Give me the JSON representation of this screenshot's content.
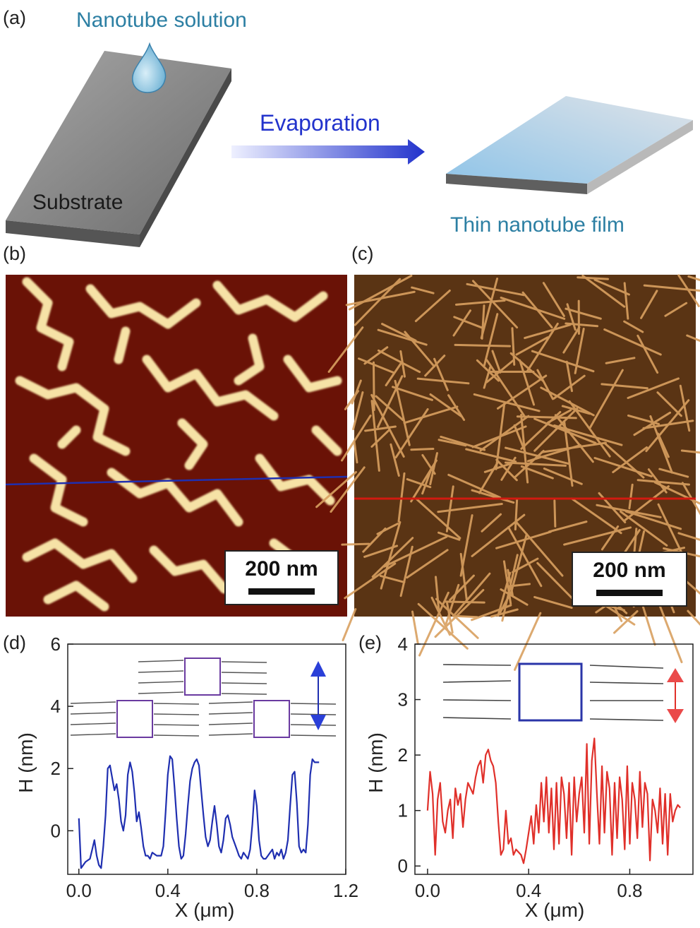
{
  "panel_a": {
    "label": "(a)",
    "droplet_label": "Nanotube solution",
    "substrate_label": "Substrate",
    "arrow_label": "Evaporation",
    "film_label": "Thin nanotube film",
    "colors": {
      "caption": "#2c7fa3",
      "arrow": "#2233cc",
      "substrate": "#8c8c8c",
      "film": "#8fc4e8"
    }
  },
  "panel_b": {
    "label": "(b)",
    "scale_bar": "200 nm",
    "line_color": "#1f2fb0",
    "colors": {
      "background": "#6a1206",
      "features": "#f6e2a6"
    }
  },
  "panel_c": {
    "label": "(c)",
    "scale_bar": "200 nm",
    "line_color": "#d21a10",
    "colors": {
      "background": "#5a3414",
      "features": "#d9a060"
    }
  },
  "panel_d": {
    "label": "(d)",
    "xlabel": "X (μm)",
    "ylabel": "H (nm)",
    "x_ticks": [
      "0.0",
      "0.4",
      "0.8",
      "1.2"
    ],
    "y_ticks": [
      "0",
      "2",
      "4",
      "6"
    ],
    "arrow_icon": "double-vertical-arrow-blue",
    "line_color": "#1f2fb0"
  },
  "panel_e": {
    "label": "(e)",
    "xlabel": "X (μm)",
    "ylabel": "H (nm)",
    "x_ticks": [
      "0.0",
      "0.4",
      "0.8"
    ],
    "y_ticks": [
      "0",
      "1",
      "2",
      "3",
      "4"
    ],
    "arrow_icon": "double-vertical-arrow-red",
    "line_color": "#e0302a"
  },
  "chart_data": [
    {
      "type": "line",
      "panel": "d",
      "xlabel": "X (μm)",
      "ylabel": "H (nm)",
      "xlim": [
        -0.05,
        1.2
      ],
      "ylim": [
        -1.4,
        6
      ],
      "grid": false,
      "series": [
        {
          "color": "#1f2fb0",
          "x": [
            0.0,
            0.01,
            0.03,
            0.05,
            0.06,
            0.07,
            0.08,
            0.09,
            0.1,
            0.11,
            0.12,
            0.13,
            0.14,
            0.15,
            0.16,
            0.17,
            0.18,
            0.19,
            0.2,
            0.21,
            0.22,
            0.23,
            0.24,
            0.25,
            0.26,
            0.27,
            0.28,
            0.29,
            0.3,
            0.31,
            0.32,
            0.33,
            0.35,
            0.37,
            0.38,
            0.39,
            0.4,
            0.41,
            0.42,
            0.43,
            0.44,
            0.45,
            0.46,
            0.47,
            0.48,
            0.49,
            0.5,
            0.51,
            0.52,
            0.53,
            0.54,
            0.55,
            0.56,
            0.57,
            0.58,
            0.59,
            0.6,
            0.61,
            0.62,
            0.63,
            0.64,
            0.65,
            0.66,
            0.67,
            0.68,
            0.69,
            0.7,
            0.71,
            0.72,
            0.73,
            0.74,
            0.75,
            0.76,
            0.77,
            0.78,
            0.79,
            0.8,
            0.81,
            0.82,
            0.83,
            0.84,
            0.85,
            0.86,
            0.87,
            0.88,
            0.89,
            0.9,
            0.91,
            0.92,
            0.93,
            0.94,
            0.95,
            0.96,
            0.97,
            0.98,
            0.99,
            1.0,
            1.01,
            1.02,
            1.03,
            1.04,
            1.05,
            1.06,
            1.07,
            1.08
          ],
          "y": [
            0.4,
            -1.2,
            -1.0,
            -0.9,
            -0.6,
            -0.3,
            -0.8,
            -1.1,
            -1.2,
            -0.5,
            0.5,
            2.0,
            2.1,
            1.7,
            1.3,
            1.5,
            1.0,
            0.3,
            0.0,
            0.5,
            1.8,
            2.2,
            1.9,
            1.2,
            0.3,
            0.6,
            0.1,
            -0.5,
            -0.8,
            -0.8,
            -0.9,
            -0.7,
            -0.8,
            -0.8,
            -0.5,
            0.6,
            1.8,
            2.4,
            2.3,
            1.4,
            0.4,
            -0.5,
            -0.9,
            -0.8,
            -0.1,
            0.8,
            1.6,
            2.0,
            2.2,
            2.3,
            2.1,
            1.3,
            0.5,
            -0.2,
            -0.5,
            -0.3,
            0.3,
            0.8,
            0.2,
            -0.5,
            -0.7,
            -0.3,
            0.4,
            0.5,
            0.2,
            -0.2,
            -0.4,
            -0.6,
            -0.8,
            -0.9,
            -0.7,
            -0.8,
            -0.9,
            -0.6,
            0.2,
            1.3,
            0.8,
            -0.3,
            -0.8,
            -0.9,
            -0.9,
            -0.8,
            -0.7,
            -0.6,
            -0.9,
            -0.7,
            -0.8,
            -0.6,
            -0.9,
            -0.7,
            -0.3,
            0.8,
            1.8,
            1.9,
            0.9,
            -0.5,
            -0.7,
            -0.6,
            -0.7,
            0.2,
            1.8,
            2.3,
            2.2,
            2.2,
            2.2
          ]
        }
      ]
    },
    {
      "type": "line",
      "panel": "e",
      "xlabel": "X (μm)",
      "ylabel": "H (nm)",
      "xlim": [
        -0.05,
        1.05
      ],
      "ylim": [
        -0.15,
        4
      ],
      "grid": false,
      "series": [
        {
          "color": "#e0302a",
          "x": [
            0.0,
            0.01,
            0.02,
            0.03,
            0.04,
            0.05,
            0.06,
            0.07,
            0.08,
            0.09,
            0.1,
            0.11,
            0.12,
            0.13,
            0.14,
            0.15,
            0.16,
            0.17,
            0.18,
            0.19,
            0.2,
            0.21,
            0.22,
            0.23,
            0.24,
            0.25,
            0.26,
            0.27,
            0.28,
            0.29,
            0.3,
            0.31,
            0.32,
            0.33,
            0.34,
            0.35,
            0.36,
            0.37,
            0.38,
            0.39,
            0.4,
            0.41,
            0.42,
            0.43,
            0.44,
            0.45,
            0.46,
            0.47,
            0.48,
            0.49,
            0.5,
            0.51,
            0.52,
            0.53,
            0.54,
            0.55,
            0.56,
            0.57,
            0.58,
            0.59,
            0.6,
            0.61,
            0.62,
            0.63,
            0.64,
            0.65,
            0.66,
            0.67,
            0.68,
            0.69,
            0.7,
            0.71,
            0.72,
            0.73,
            0.74,
            0.75,
            0.76,
            0.77,
            0.78,
            0.79,
            0.8,
            0.81,
            0.82,
            0.83,
            0.84,
            0.85,
            0.86,
            0.87,
            0.88,
            0.89,
            0.9,
            0.91,
            0.92,
            0.93,
            0.94,
            0.95,
            0.96,
            0.97,
            0.98,
            0.99,
            1.0
          ],
          "y": [
            1.0,
            1.7,
            1.3,
            0.2,
            1.2,
            1.5,
            0.8,
            0.6,
            1.0,
            1.2,
            0.5,
            1.4,
            1.1,
            1.3,
            0.7,
            1.2,
            1.5,
            1.4,
            1.3,
            1.6,
            1.8,
            1.9,
            1.5,
            2.0,
            2.1,
            1.9,
            1.8,
            1.5,
            0.8,
            0.2,
            0.3,
            1.0,
            0.4,
            0.5,
            0.2,
            0.3,
            0.25,
            0.2,
            0.05,
            0.3,
            0.6,
            0.9,
            0.4,
            1.1,
            0.6,
            1.5,
            0.8,
            1.6,
            0.6,
            1.4,
            0.3,
            1.5,
            0.4,
            1.6,
            1.3,
            0.5,
            1.5,
            0.2,
            1.6,
            0.8,
            1.3,
            1.6,
            0.6,
            2.2,
            0.4,
            1.9,
            2.3,
            1.3,
            0.4,
            1.8,
            0.6,
            1.7,
            1.4,
            0.2,
            1.5,
            0.5,
            1.6,
            1.2,
            0.3,
            1.8,
            0.4,
            1.5,
            1.2,
            0.5,
            1.7,
            0.7,
            1.5,
            1.3,
            0.1,
            1.2,
            1.0,
            0.6,
            1.4,
            0.4,
            1.3,
            0.2,
            1.3,
            0.8,
            1.0,
            1.1,
            1.05
          ]
        }
      ]
    }
  ]
}
